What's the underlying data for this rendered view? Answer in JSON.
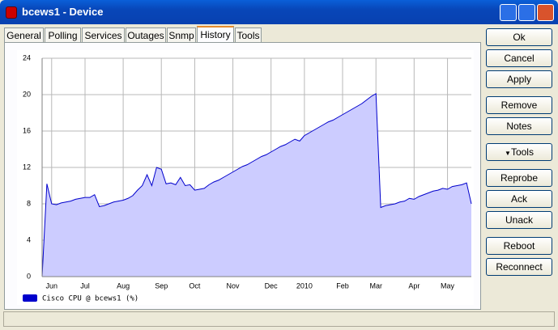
{
  "window": {
    "title": "bcews1 - Device",
    "tabs": [
      "General",
      "Polling",
      "Services",
      "Outages",
      "Snmp",
      "History",
      "Tools"
    ],
    "buttons": [
      "Ok",
      "Cancel",
      "Apply",
      "Remove",
      "Notes",
      "Tools",
      "Reprobe",
      "Ack",
      "Unack",
      "Reboot",
      "Reconnect"
    ]
  },
  "chart_data": {
    "type": "area",
    "y_label": ":",
    "categories": [
      null,
      null,
      "Jun",
      null,
      null,
      null,
      null,
      null,
      null,
      "Jul",
      null,
      null,
      null,
      null,
      null,
      null,
      null,
      "Aug",
      null,
      null,
      null,
      null,
      null,
      null,
      null,
      "Sep",
      null,
      null,
      null,
      null,
      null,
      null,
      "Oct",
      null,
      null,
      null,
      null,
      null,
      null,
      null,
      "Nov",
      null,
      null,
      null,
      null,
      null,
      null,
      null,
      "Dec",
      null,
      null,
      null,
      null,
      null,
      null,
      "2010",
      null,
      null,
      null,
      null,
      null,
      null,
      null,
      "Feb",
      null,
      null,
      null,
      null,
      null,
      null,
      "Mar",
      null,
      null,
      null,
      null,
      null,
      null,
      null,
      "Apr",
      null,
      null,
      null,
      null,
      null,
      null,
      "May",
      null,
      null,
      null,
      null,
      null
    ],
    "series": [
      {
        "name": "Cisco CPU @ bcews1 (%)",
        "color": "#0000cc",
        "fill": "#ccccff",
        "values": [
          0,
          10.2,
          8.0,
          7.9,
          8.1,
          8.2,
          8.3,
          8.5,
          8.6,
          8.7,
          8.7,
          9.0,
          7.7,
          7.8,
          8.0,
          8.2,
          8.3,
          8.4,
          8.6,
          8.9,
          9.5,
          10.0,
          11.2,
          10.0,
          12.0,
          11.8,
          10.2,
          10.3,
          10.1,
          10.9,
          10.0,
          10.1,
          9.5,
          9.6,
          9.7,
          10.1,
          10.4,
          10.6,
          10.9,
          11.2,
          11.5,
          11.8,
          12.1,
          12.3,
          12.6,
          12.9,
          13.2,
          13.4,
          13.7,
          14.0,
          14.3,
          14.5,
          14.8,
          15.1,
          14.9,
          15.5,
          15.8,
          16.1,
          16.4,
          16.7,
          17.0,
          17.2,
          17.5,
          17.8,
          18.1,
          18.4,
          18.7,
          19.0,
          19.4,
          19.8,
          20.1,
          7.6,
          7.8,
          7.9,
          8.0,
          8.2,
          8.3,
          8.6,
          8.5,
          8.8,
          9.0,
          9.2,
          9.4,
          9.5,
          9.7,
          9.6,
          9.9,
          10.0,
          10.1,
          10.3,
          8.0
        ]
      }
    ],
    "ylim": [
      0,
      24
    ],
    "yticks": [
      0,
      4,
      8,
      12,
      16,
      20,
      24
    ],
    "grid": true
  }
}
